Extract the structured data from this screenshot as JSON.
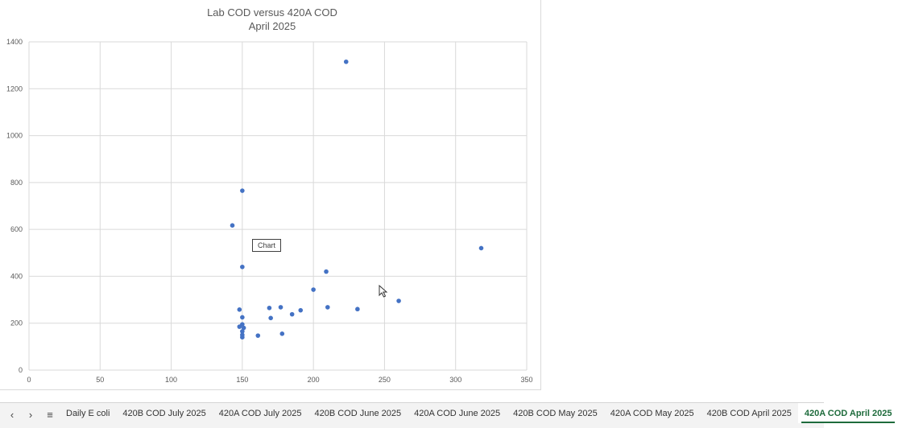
{
  "chart_data": {
    "type": "scatter",
    "title": "Lab COD versus 420A COD",
    "subtitle": "April 2025",
    "xlim": [
      0,
      350
    ],
    "ylim": [
      0,
      1400
    ],
    "x_ticks": [
      0,
      50,
      100,
      150,
      200,
      250,
      300,
      350
    ],
    "y_ticks": [
      0,
      200,
      400,
      600,
      800,
      1000,
      1200,
      1400
    ],
    "grid": true,
    "color": "#4472c4",
    "points": [
      {
        "x": 143,
        "y": 617
      },
      {
        "x": 150,
        "y": 765
      },
      {
        "x": 150,
        "y": 440
      },
      {
        "x": 148,
        "y": 258
      },
      {
        "x": 150,
        "y": 225
      },
      {
        "x": 148,
        "y": 185
      },
      {
        "x": 150,
        "y": 195
      },
      {
        "x": 151,
        "y": 180
      },
      {
        "x": 150,
        "y": 165
      },
      {
        "x": 150,
        "y": 150
      },
      {
        "x": 150,
        "y": 140
      },
      {
        "x": 161,
        "y": 147
      },
      {
        "x": 169,
        "y": 265
      },
      {
        "x": 170,
        "y": 222
      },
      {
        "x": 177,
        "y": 268
      },
      {
        "x": 178,
        "y": 155
      },
      {
        "x": 185,
        "y": 238
      },
      {
        "x": 191,
        "y": 255
      },
      {
        "x": 200,
        "y": 343
      },
      {
        "x": 209,
        "y": 420
      },
      {
        "x": 210,
        "y": 268
      },
      {
        "x": 223,
        "y": 1315
      },
      {
        "x": 231,
        "y": 260
      },
      {
        "x": 260,
        "y": 295
      },
      {
        "x": 318,
        "y": 520
      }
    ]
  },
  "tooltip": "Chart",
  "sheet_tabs": {
    "items": [
      "Daily E coli",
      "420B COD July 2025",
      "420A COD July 2025",
      "420B COD June 2025",
      "420A COD June 2025",
      "420B COD May 2025",
      "420A COD May 2025",
      "420B COD April 2025",
      "420A COD April 2025"
    ],
    "active_index": 8
  },
  "icons": {
    "prev": "chevron-left-icon",
    "next": "chevron-right-icon",
    "menu": "hamburger-menu-icon"
  }
}
